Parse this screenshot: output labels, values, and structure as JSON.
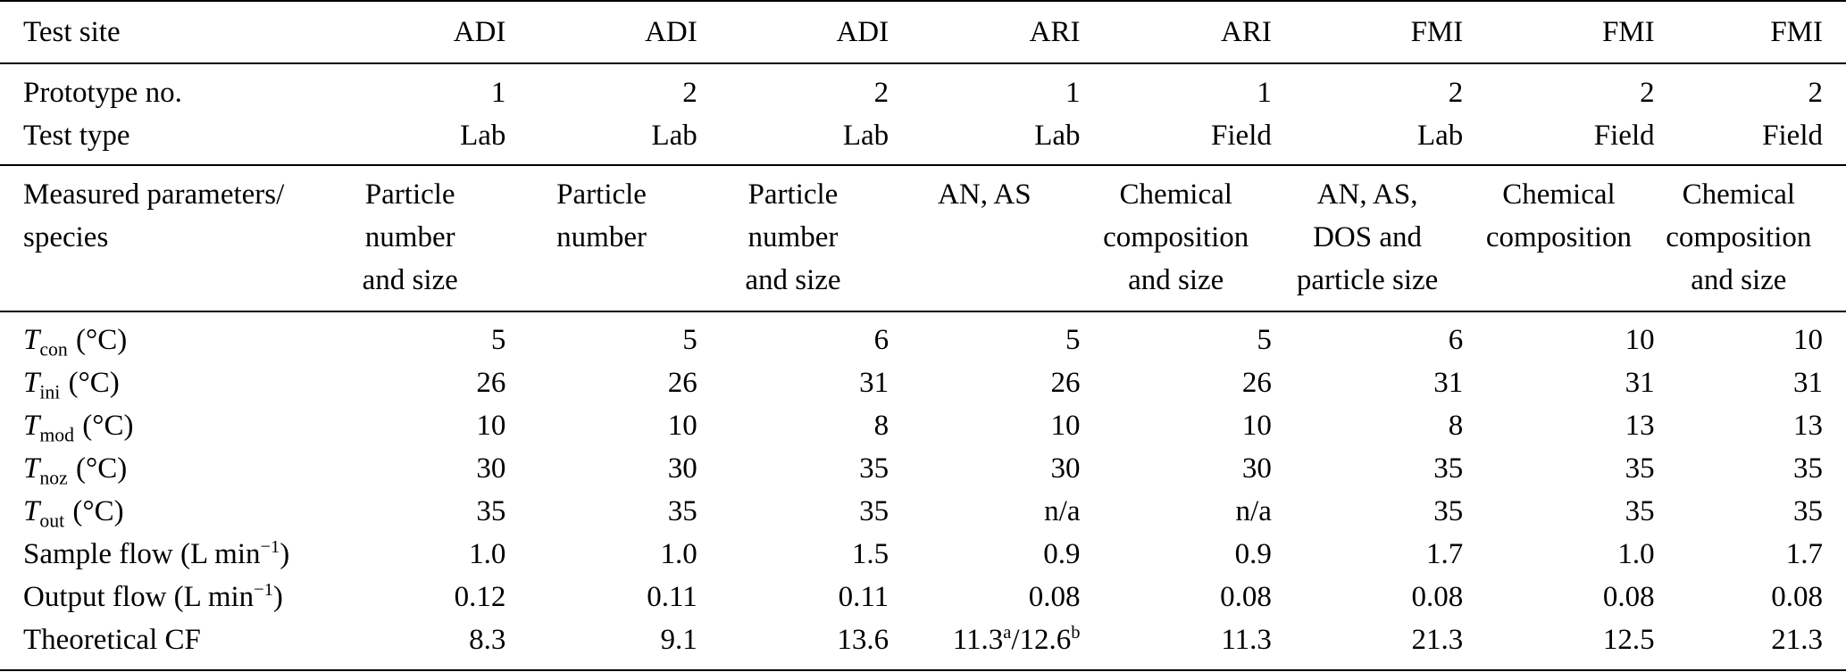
{
  "table": {
    "test_site": {
      "label": "Test site",
      "values": [
        "ADI",
        "ADI",
        "ADI",
        "ARI",
        "ARI",
        "FMI",
        "FMI",
        "FMI"
      ]
    },
    "prototype": {
      "label": "Prototype no.",
      "values": [
        "1",
        "2",
        "2",
        "1",
        "1",
        "2",
        "2",
        "2"
      ]
    },
    "test_type": {
      "label": "Test type",
      "values": [
        "Lab",
        "Lab",
        "Lab",
        "Lab",
        "Field",
        "Lab",
        "Field",
        "Field"
      ]
    },
    "measured": {
      "label_lines": [
        "Measured parameters/",
        "species"
      ],
      "values_lines": [
        [
          "Particle",
          "number",
          "and size"
        ],
        [
          "Particle",
          "number"
        ],
        [
          "Particle",
          "number",
          "and size"
        ],
        [
          "AN, AS"
        ],
        [
          "Chemical",
          "composition",
          "and size"
        ],
        [
          "AN, AS,",
          "DOS and",
          "particle size"
        ],
        [
          "Chemical",
          "composition"
        ],
        [
          "Chemical",
          "composition",
          "and size"
        ]
      ]
    },
    "t_con": {
      "label_base": "T",
      "label_sub": "con",
      "label_unit": "(°C)",
      "values": [
        "5",
        "5",
        "6",
        "5",
        "5",
        "6",
        "10",
        "10"
      ]
    },
    "t_ini": {
      "label_base": "T",
      "label_sub": "ini",
      "label_unit": "(°C)",
      "values": [
        "26",
        "26",
        "31",
        "26",
        "26",
        "31",
        "31",
        "31"
      ]
    },
    "t_mod": {
      "label_base": "T",
      "label_sub": "mod",
      "label_unit": "(°C)",
      "values": [
        "10",
        "10",
        "8",
        "10",
        "10",
        "8",
        "13",
        "13"
      ]
    },
    "t_noz": {
      "label_base": "T",
      "label_sub": "noz",
      "label_unit": "(°C)",
      "values": [
        "30",
        "30",
        "35",
        "30",
        "30",
        "35",
        "35",
        "35"
      ]
    },
    "t_out": {
      "label_base": "T",
      "label_sub": "out",
      "label_unit": "(°C)",
      "values": [
        "35",
        "35",
        "35",
        "n/a",
        "n/a",
        "35",
        "35",
        "35"
      ]
    },
    "sample_flow": {
      "label_pre": "Sample flow (L min",
      "label_sup": "−1",
      "label_post": ")",
      "values": [
        "1.0",
        "1.0",
        "1.5",
        "0.9",
        "0.9",
        "1.7",
        "1.0",
        "1.7"
      ]
    },
    "output_flow": {
      "label_pre": "Output flow (L min",
      "label_sup": "−1",
      "label_post": ")",
      "values": [
        "0.12",
        "0.11",
        "0.11",
        "0.08",
        "0.08",
        "0.08",
        "0.08",
        "0.08"
      ]
    },
    "theoretical_cf": {
      "label": "Theoretical CF",
      "values": [
        "8.3",
        "9.1",
        "13.6",
        {
          "pre": "11.3",
          "sup_a": "a",
          "mid": "/12.6",
          "sup_b": "b"
        },
        "11.3",
        "21.3",
        "12.5",
        "21.3"
      ]
    }
  }
}
